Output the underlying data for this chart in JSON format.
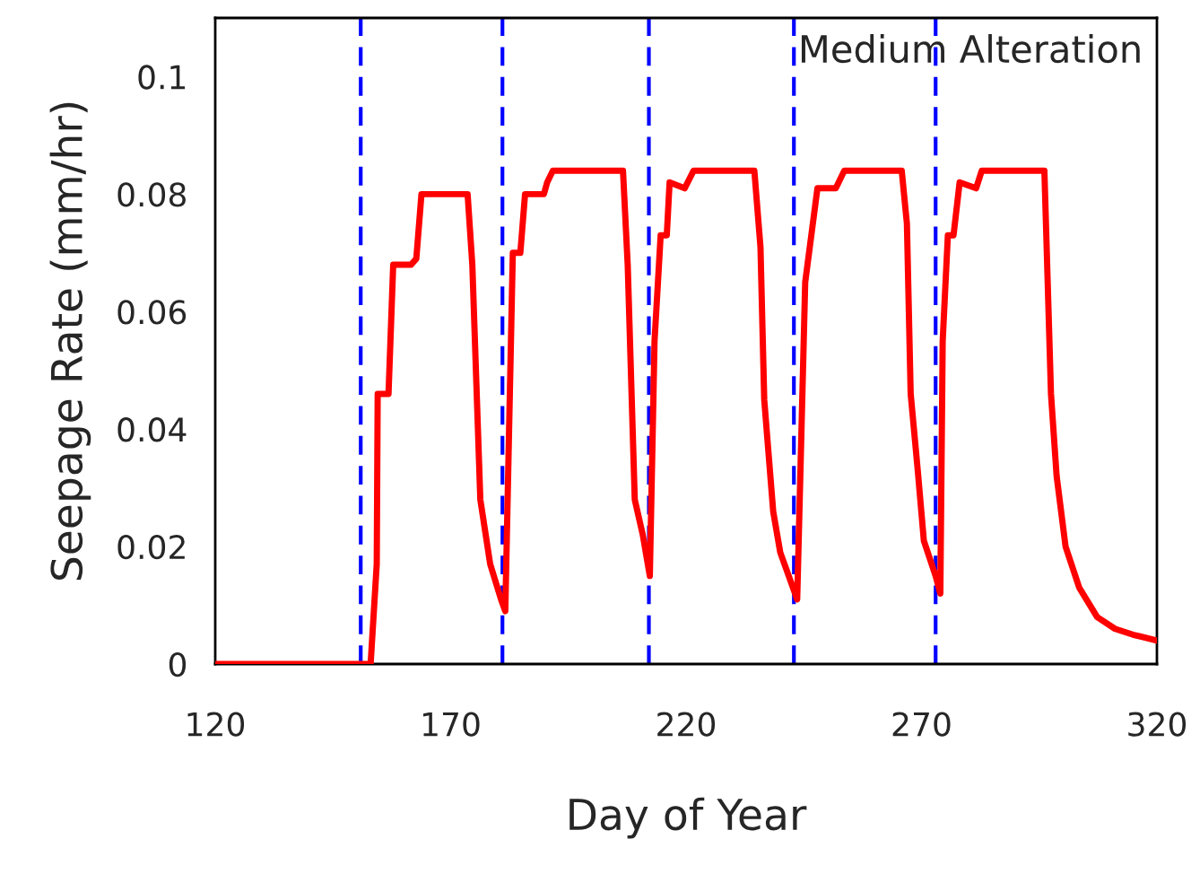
{
  "chart_data": {
    "type": "line",
    "xlabel": "Day of Year",
    "ylabel": "Seepage Rate (mm/hr)",
    "annotations": [
      "Medium Alteration"
    ],
    "xlim": [
      120,
      320
    ],
    "ylim": [
      0,
      0.11
    ],
    "xticks": [
      120,
      170,
      220,
      270,
      320
    ],
    "yticks": [
      0,
      0.02,
      0.04,
      0.06,
      0.08,
      0.1
    ],
    "grid": false,
    "legend": false,
    "marker": "none",
    "line_style": "solid",
    "series": [
      {
        "color": "#ff0000",
        "x": [
          120,
          153.0,
          154.3,
          154.5,
          156.8,
          157.8,
          161.6,
          162.7,
          163.8,
          173.6,
          174.6,
          176.3,
          178.4,
          180.7,
          181.6,
          183.2,
          184.8,
          185.8,
          189.8,
          190.5,
          191.7,
          206.6,
          207.6,
          209.1,
          210.8,
          212.3,
          213.3,
          214.6,
          215.9,
          216.5,
          219.7,
          221.6,
          234.5,
          235.8,
          236.6,
          238.5,
          240.0,
          243.6,
          245.3,
          247.9,
          251.8,
          253.6,
          265.8,
          266.9,
          267.7,
          269.2,
          270.5,
          273.0,
          274.0,
          274.5,
          275.6,
          276.8,
          278.1,
          281.6,
          282.8,
          296.1,
          297.5,
          298.7,
          300.6,
          303.5,
          307.3,
          311.1,
          314.9,
          320
        ],
        "values": [
          0,
          0,
          0.017,
          0.046,
          0.046,
          0.068,
          0.068,
          0.069,
          0.08,
          0.08,
          0.068,
          0.028,
          0.017,
          0.011,
          0.009,
          0.07,
          0.07,
          0.08,
          0.08,
          0.082,
          0.084,
          0.084,
          0.068,
          0.028,
          0.022,
          0.015,
          0.055,
          0.073,
          0.073,
          0.082,
          0.081,
          0.084,
          0.084,
          0.071,
          0.045,
          0.026,
          0.019,
          0.011,
          0.065,
          0.081,
          0.081,
          0.084,
          0.084,
          0.075,
          0.046,
          0.033,
          0.021,
          0.015,
          0.012,
          0.055,
          0.073,
          0.073,
          0.082,
          0.081,
          0.084,
          0.084,
          0.046,
          0.032,
          0.02,
          0.013,
          0.008,
          0.006,
          0.005,
          0.004
        ]
      }
    ],
    "ref_lines": [
      {
        "axis": "x",
        "value": 150.9,
        "color": "#0000ff",
        "line_style": "dashed"
      },
      {
        "axis": "x",
        "value": 181.0,
        "color": "#0000ff",
        "line_style": "dashed"
      },
      {
        "axis": "x",
        "value": 212.1,
        "color": "#0000ff",
        "line_style": "dashed"
      },
      {
        "axis": "x",
        "value": 242.9,
        "color": "#0000ff",
        "line_style": "dashed"
      },
      {
        "axis": "x",
        "value": 273.0,
        "color": "#0000ff",
        "line_style": "dashed"
      }
    ]
  }
}
